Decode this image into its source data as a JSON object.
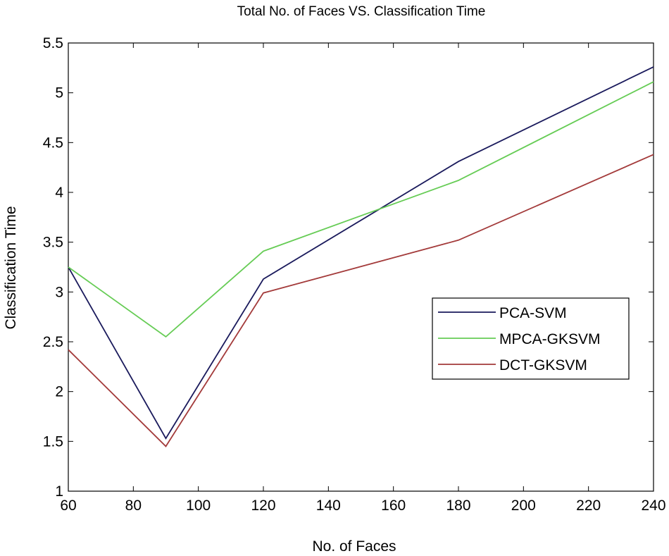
{
  "chart_data": {
    "type": "line",
    "title": "Total No. of Faces VS. Classification Time",
    "xlabel": "No. of Faces",
    "ylabel": "Classification Time",
    "xlim": [
      60,
      240
    ],
    "ylim": [
      1,
      5.5
    ],
    "xticks": [
      60,
      80,
      100,
      120,
      140,
      160,
      180,
      200,
      220,
      240
    ],
    "yticks": [
      1,
      1.5,
      2,
      2.5,
      3,
      3.5,
      4,
      4.5,
      5,
      5.5
    ],
    "ytick_labels": [
      "1",
      "1.5",
      "2",
      "2.5",
      "3",
      "3.5",
      "4",
      "4.5",
      "5",
      "5.5"
    ],
    "grid": false,
    "legend_position": "right",
    "x": [
      60,
      90,
      120,
      180,
      240
    ],
    "series": [
      {
        "name": "PCA-SVM",
        "color": "#1a1a5c",
        "values": [
          3.25,
          1.53,
          3.13,
          4.31,
          5.26
        ]
      },
      {
        "name": "MPCA-GKSVM",
        "color": "#66cc55",
        "values": [
          3.25,
          2.55,
          3.41,
          4.12,
          5.11
        ]
      },
      {
        "name": "DCT-GKSVM",
        "color": "#a33a3a",
        "values": [
          2.42,
          1.45,
          2.99,
          3.52,
          4.38
        ]
      }
    ]
  }
}
